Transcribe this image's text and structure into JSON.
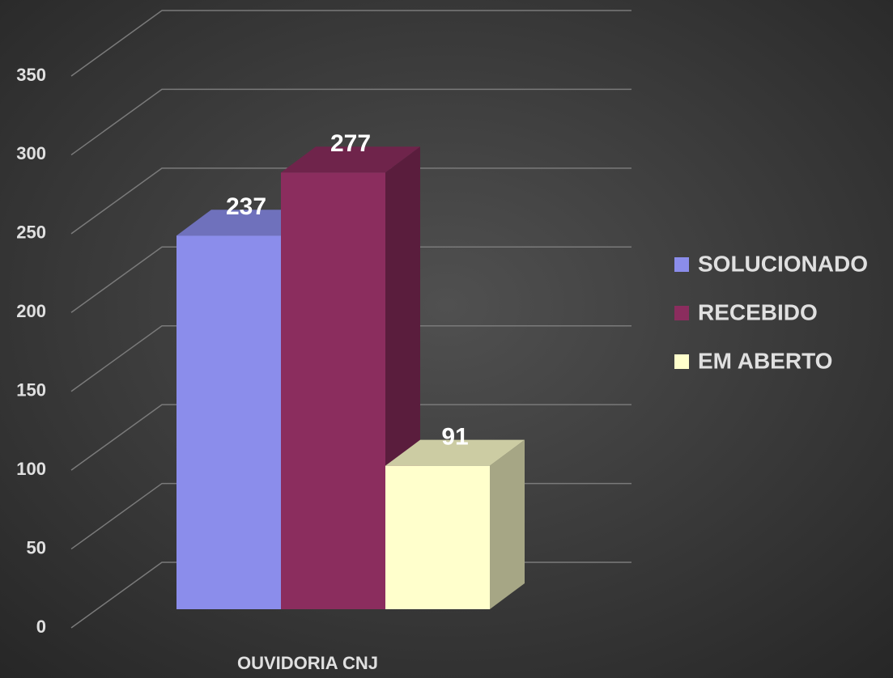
{
  "chart_data": {
    "type": "bar3d",
    "categories": [
      "OUVIDORIA CNJ"
    ],
    "series": [
      {
        "name": "SOLUCIONADO",
        "color": "#8b8deb",
        "values": [
          237
        ]
      },
      {
        "name": "RECEBIDO",
        "color": "#8b2d5e",
        "values": [
          277
        ]
      },
      {
        "name": "EM ABERTO",
        "color": "#ffffcc",
        "values": [
          91
        ]
      }
    ],
    "ylim": [
      0,
      350
    ],
    "yticks": [
      0,
      50,
      100,
      150,
      200,
      250,
      300,
      350
    ],
    "grid": true,
    "legend": "right"
  }
}
